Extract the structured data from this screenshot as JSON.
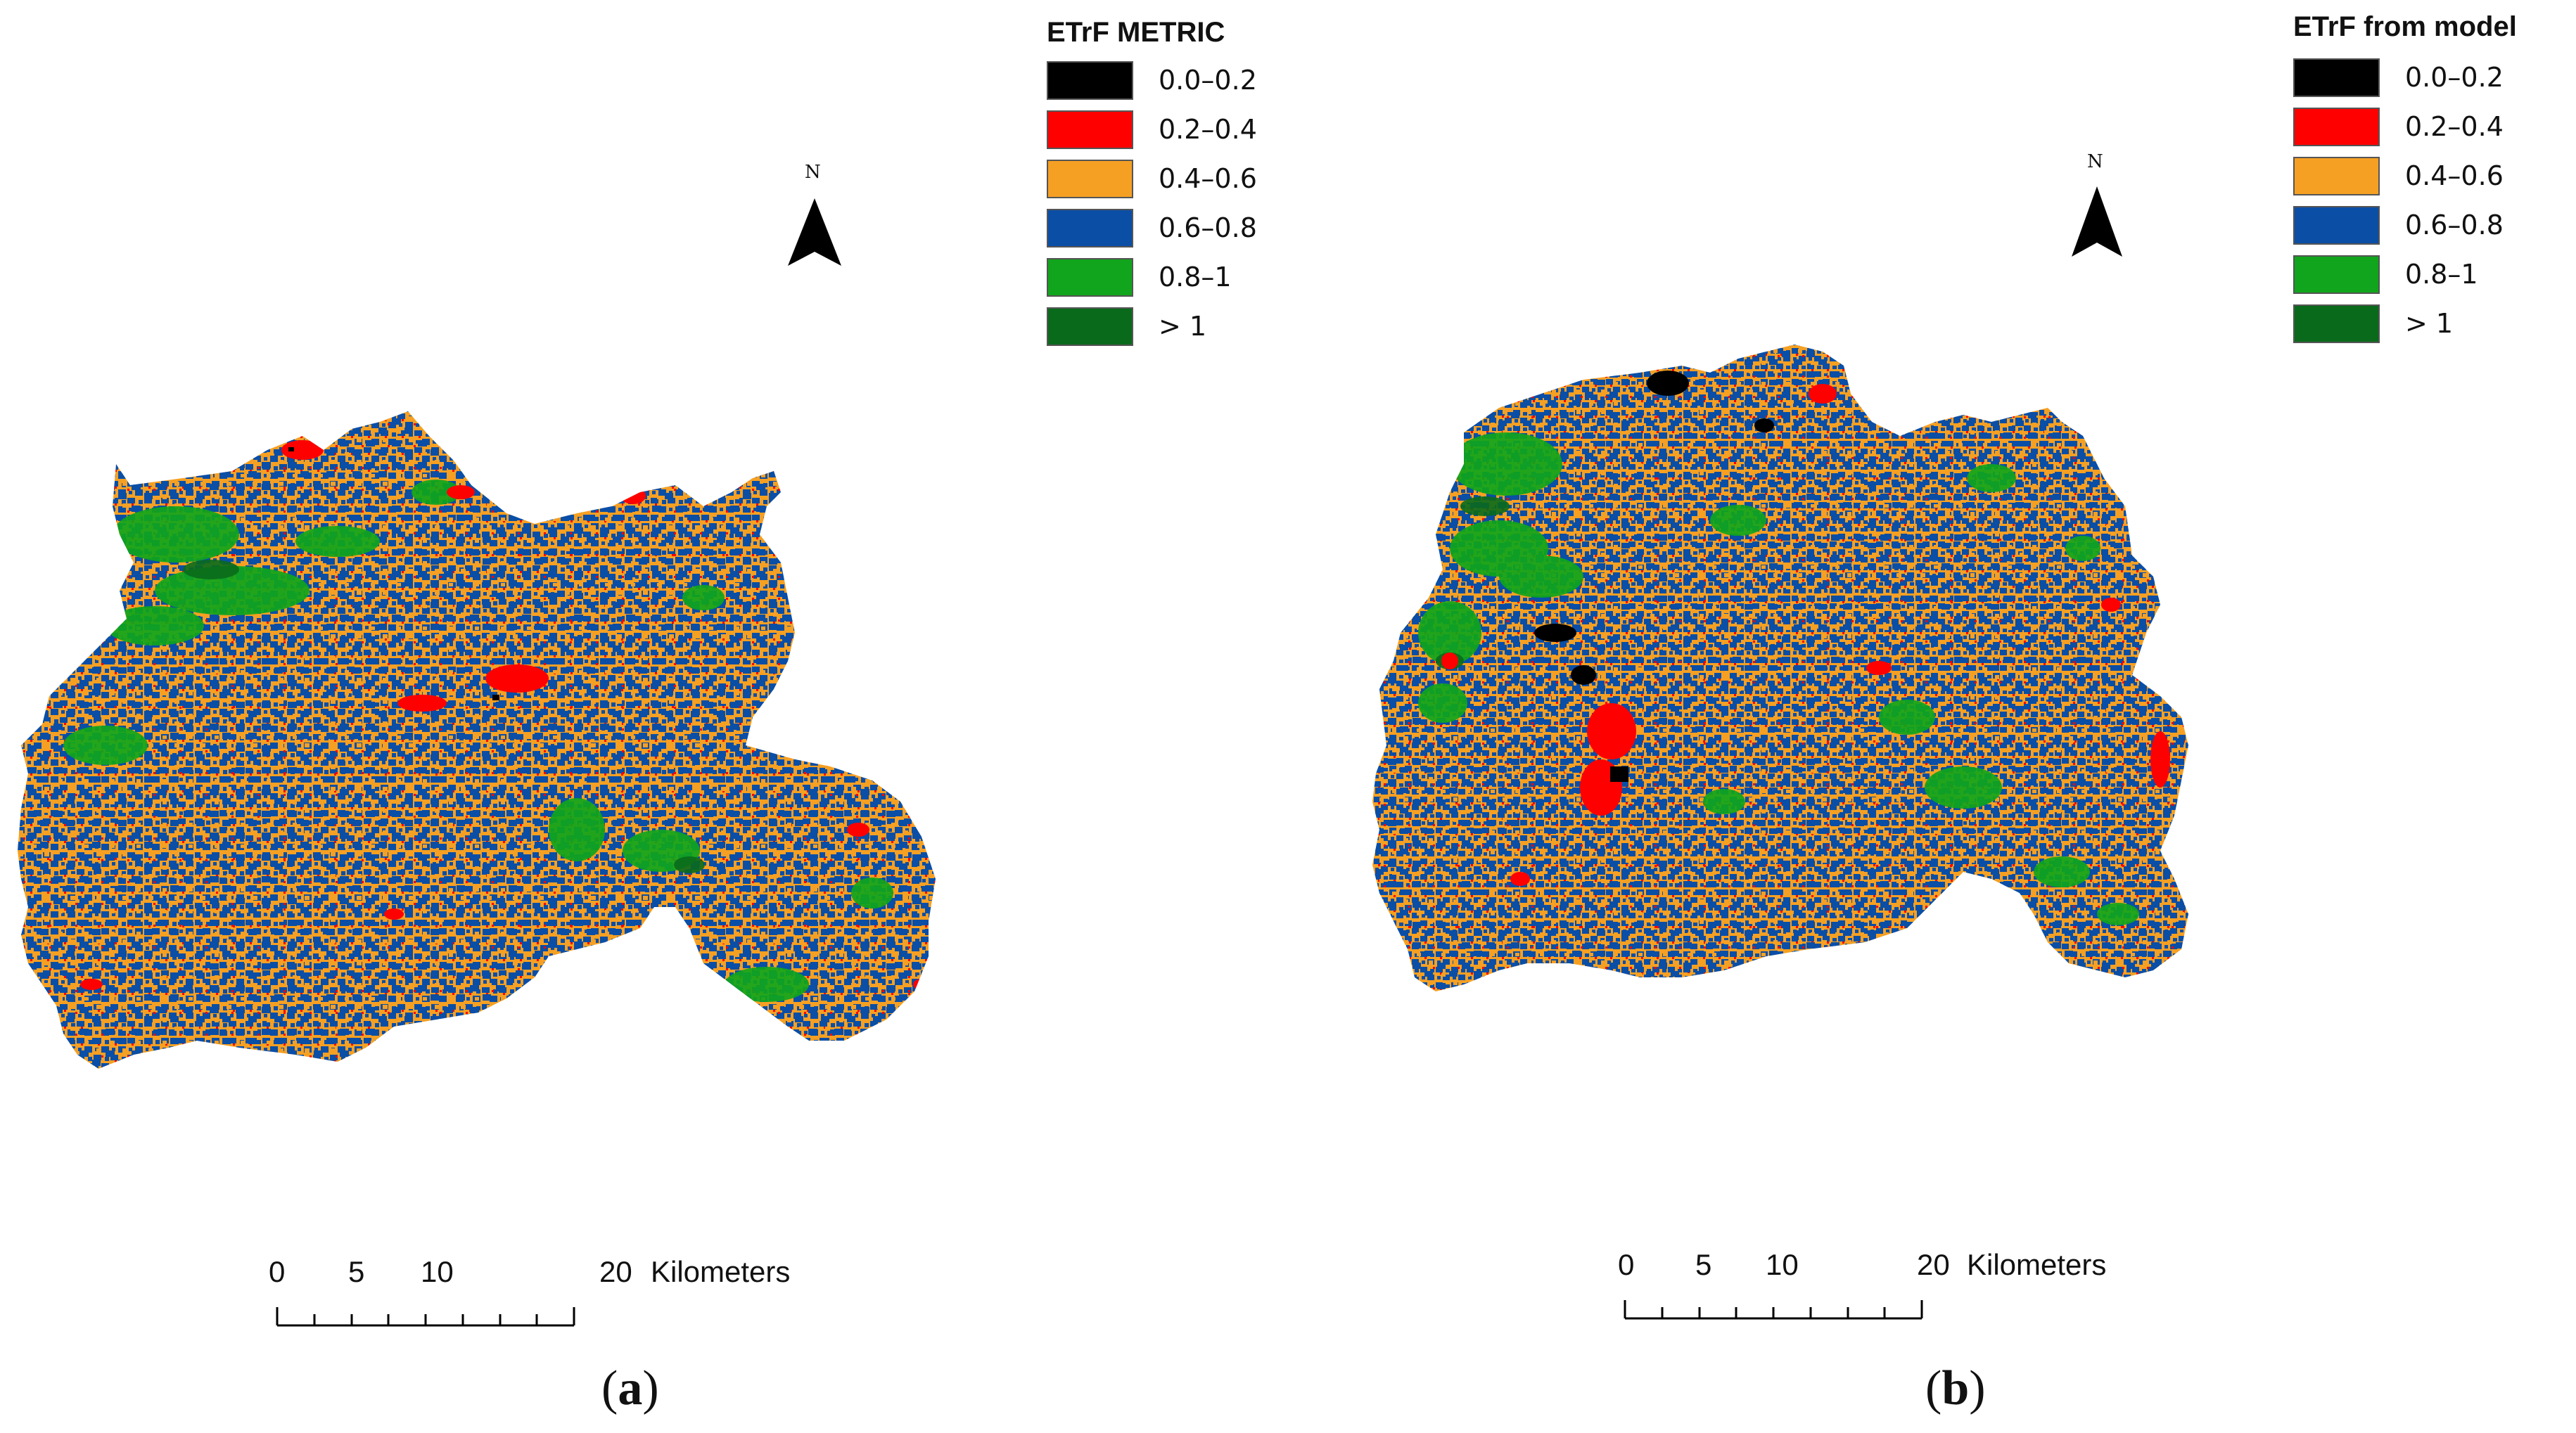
{
  "panels": [
    {
      "id": "a",
      "legend_title": "ETrF METRIC",
      "caption_open": "(",
      "caption_letter": "a",
      "caption_close": ")"
    },
    {
      "id": "b",
      "legend_title": "ETrF from model",
      "caption_open": "(",
      "caption_letter": "b",
      "caption_close": ")"
    }
  ],
  "legend_classes": [
    {
      "label": "0.0–0.2",
      "color": "#000000"
    },
    {
      "label": "0.2–0.4",
      "color": "#ff0000"
    },
    {
      "label": "0.4–0.6",
      "color": "#f5a023"
    },
    {
      "label": "0.6–0.8",
      "color": "#0a4ea6"
    },
    {
      "label": "0.8–1",
      "color": "#10a51c"
    },
    {
      "label": "> 1",
      "color": "#0a6a1c"
    }
  ],
  "north_label": "N",
  "scale": {
    "ticks": [
      "0",
      "5",
      "10",
      "20"
    ],
    "unit": "Kilometers"
  }
}
